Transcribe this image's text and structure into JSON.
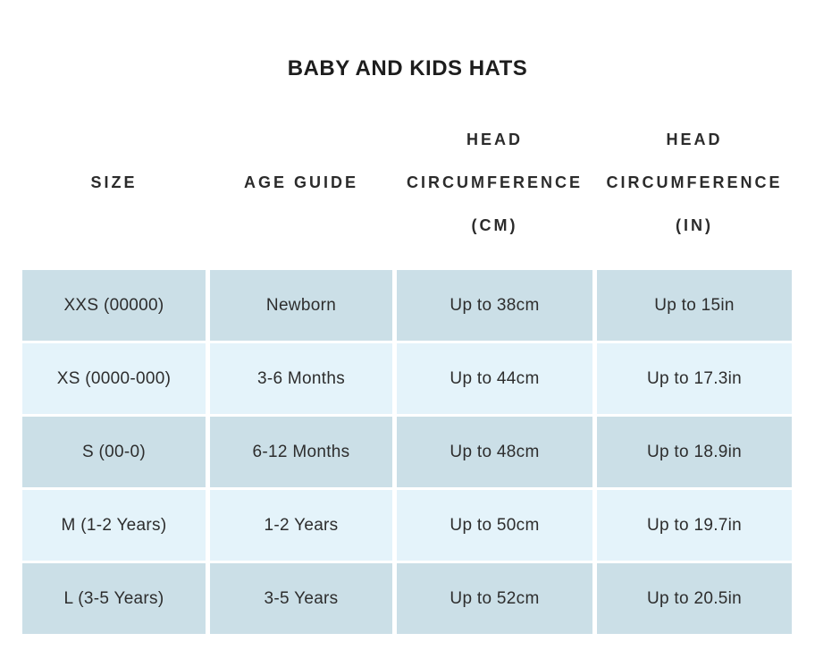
{
  "title": "BABY AND KIDS HATS",
  "table": {
    "columns": [
      "SIZE",
      "AGE GUIDE",
      "HEAD CIRCUMFERENCE (CM)",
      "HEAD CIRCUMFERENCE (IN)"
    ],
    "rows": [
      [
        "XXS (00000)",
        "Newborn",
        "Up to 38cm",
        "Up to 15in"
      ],
      [
        "XS (0000-000)",
        "3-6 Months",
        "Up to 44cm",
        "Up to 17.3in"
      ],
      [
        "S (00-0)",
        "6-12 Months",
        "Up to 48cm",
        "Up to 18.9in"
      ],
      [
        "M (1-2 Years)",
        "1-2 Years",
        "Up to 50cm",
        "Up to 19.7in"
      ],
      [
        "L (3-5 Years)",
        "3-5 Years",
        "Up to 52cm",
        "Up to 20.5in"
      ]
    ],
    "colors": {
      "row_dark": "#cbdfe7",
      "row_light": "#e4f3fa",
      "cell_text": "#2d2d2d",
      "header_text": "#2b2b2b",
      "title_text": "#1d1d1d",
      "background": "#ffffff"
    }
  }
}
